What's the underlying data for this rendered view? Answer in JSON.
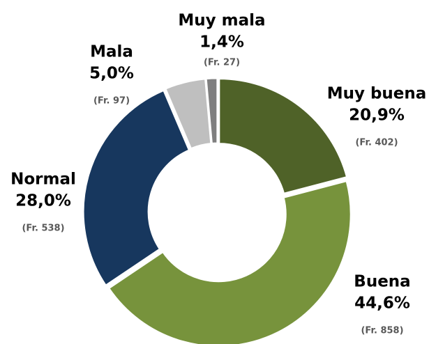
{
  "chart_data": {
    "type": "donut",
    "categories": [
      "Muy buena",
      "Buena",
      "Normal",
      "Mala",
      "Muy mala"
    ],
    "values": [
      20.9,
      44.6,
      28.0,
      5.0,
      1.4
    ],
    "value_labels": [
      "20,9%",
      "44,6%",
      "28,0%",
      "5,0%",
      "1,4%"
    ],
    "frequency_labels": [
      "(Fr. 402)",
      "(Fr. 858)",
      "(Fr. 538)",
      "(Fr. 97)",
      "(Fr. 27)"
    ],
    "colors": [
      "#4f6228",
      "#77933c",
      "#17375e",
      "#bfbfbf",
      "#7f7f7f"
    ]
  }
}
